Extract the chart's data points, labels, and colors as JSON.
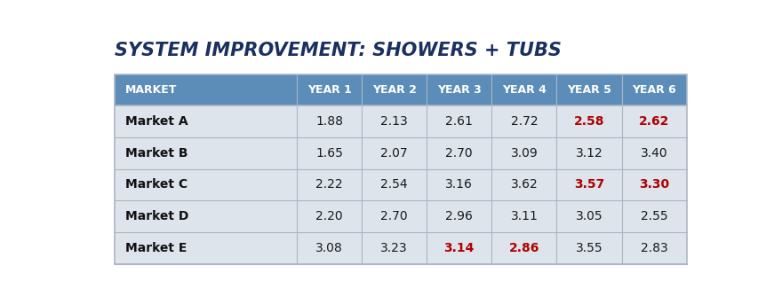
{
  "title": "SYSTEM IMPROVEMENT: SHOWERS + TUBS",
  "title_color": "#1a3060",
  "title_fontsize": 15,
  "header_bg_color": "#5b8db8",
  "header_text_color": "#ffffff",
  "row_bg": "#dde4ec",
  "grid_line_color": "#aab5c5",
  "columns": [
    "MARKET",
    "YEAR 1",
    "YEAR 2",
    "YEAR 3",
    "YEAR 4",
    "YEAR 5",
    "YEAR 6"
  ],
  "col_widths": [
    2.8,
    1.0,
    1.0,
    1.0,
    1.0,
    1.0,
    1.0
  ],
  "rows": [
    {
      "label": "Market A",
      "values": [
        "1.88",
        "2.13",
        "2.61",
        "2.72",
        "2.58",
        "2.62"
      ],
      "red_cols": [
        5,
        6
      ]
    },
    {
      "label": "Market B",
      "values": [
        "1.65",
        "2.07",
        "2.70",
        "3.09",
        "3.12",
        "3.40"
      ],
      "red_cols": []
    },
    {
      "label": "Market C",
      "values": [
        "2.22",
        "2.54",
        "3.16",
        "3.62",
        "3.57",
        "3.30"
      ],
      "red_cols": [
        5,
        6
      ]
    },
    {
      "label": "Market D",
      "values": [
        "2.20",
        "2.70",
        "2.96",
        "3.11",
        "3.05",
        "2.55"
      ],
      "red_cols": []
    },
    {
      "label": "Market E",
      "values": [
        "3.08",
        "3.23",
        "3.14",
        "2.86",
        "3.55",
        "2.83"
      ],
      "red_cols": [
        3,
        4
      ]
    }
  ],
  "normal_text_color": "#1a1a1a",
  "red_text_color": "#b00000",
  "label_text_color": "#111111"
}
